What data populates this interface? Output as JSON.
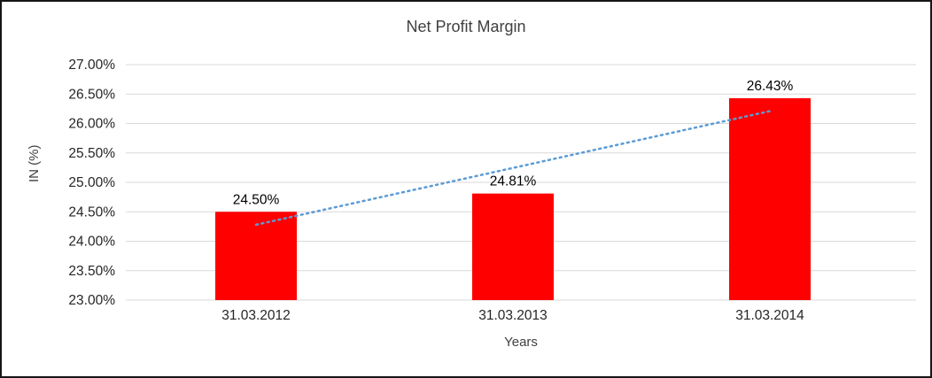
{
  "chart_data": {
    "type": "bar",
    "title": "Net Profit Margin",
    "xlabel": "Years",
    "ylabel": "IN (%)",
    "categories": [
      "31.03.2012",
      "31.03.2013",
      "31.03.2014"
    ],
    "values": [
      24.5,
      24.81,
      26.43
    ],
    "value_labels": [
      "24.50%",
      "24.81%",
      "26.43%"
    ],
    "ylim": [
      23.0,
      27.0
    ],
    "ytick_step": 0.5,
    "ytick_labels": [
      "23.00%",
      "23.50%",
      "24.00%",
      "24.50%",
      "25.00%",
      "25.50%",
      "26.00%",
      "26.50%",
      "27.00%"
    ],
    "grid": true,
    "legend": "none",
    "bar_color": "#ff0000",
    "gridline_color": "#d9d9d9",
    "tick_label_color": "#262626",
    "data_label_color": "#000000",
    "trendline": {
      "style": "dotted",
      "color": "#5b9bd5",
      "endpoints": [
        24.28,
        26.21
      ]
    }
  }
}
